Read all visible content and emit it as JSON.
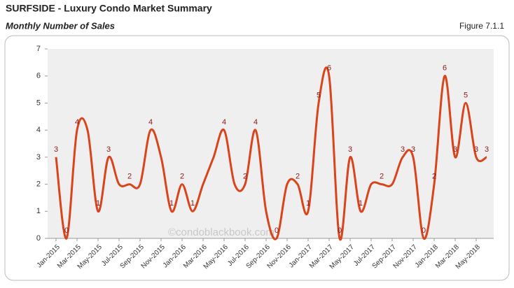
{
  "chart_data": {
    "type": "line",
    "title": "SURFSIDE - Luxury Condo Market Summary",
    "subtitle": "Monthly Number of Sales",
    "figure_label": "Figure 7.1.1",
    "watermark": "©condoblackbook.com",
    "categories": [
      "Jan-2015",
      null,
      "Mar-2015",
      null,
      "May-2015",
      null,
      "Jul-2015",
      null,
      "Sep-2015",
      null,
      "Nov-2015",
      null,
      "Jan-2016",
      null,
      "Mar-2016",
      null,
      "May-2016",
      null,
      "Jul-2016",
      null,
      "Sep-2016",
      null,
      "Nov-2016",
      null,
      "Jan-2017",
      null,
      "Mar-2017",
      null,
      "May-2017",
      null,
      "Jul-2017",
      null,
      "Sep-2017",
      null,
      "Nov-2017",
      null,
      "Jan-2018",
      null,
      "Mar-2018",
      null,
      "May-2018",
      null
    ],
    "series": [
      {
        "name": "Sales",
        "color": "#d9441c",
        "values": [
          3,
          0,
          4,
          4,
          1,
          3,
          2,
          2,
          2,
          4,
          3,
          1,
          2,
          1,
          2,
          3,
          4,
          2,
          2,
          4,
          1,
          0,
          2,
          2,
          1,
          5,
          6,
          0,
          3,
          1,
          2,
          2,
          2,
          3,
          3,
          0,
          2,
          6,
          3,
          5,
          3,
          3
        ]
      }
    ],
    "labeled_points": [
      0,
      1,
      2,
      4,
      5,
      7,
      9,
      11,
      12,
      13,
      16,
      18,
      19,
      21,
      23,
      24,
      25,
      26,
      27,
      28,
      29,
      31,
      33,
      34,
      35,
      36,
      37,
      38,
      39,
      40,
      41
    ],
    "ylim": [
      0,
      7
    ],
    "yticks": [
      0,
      1,
      2,
      3,
      4,
      5,
      6,
      7
    ],
    "grid": false
  }
}
